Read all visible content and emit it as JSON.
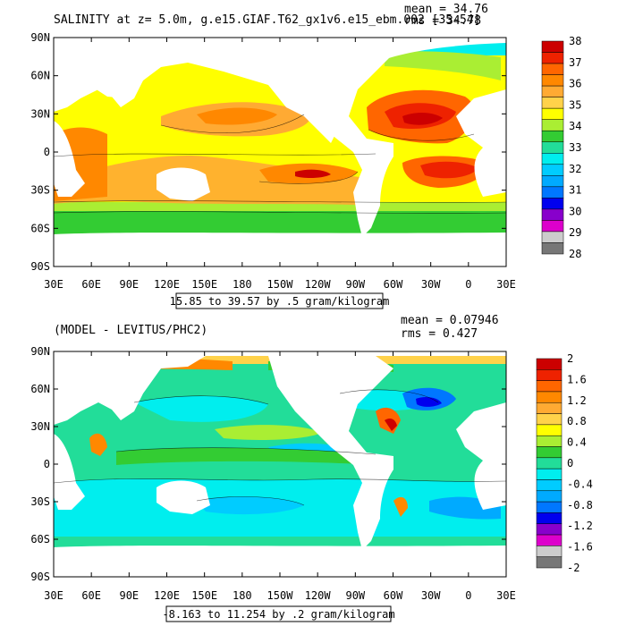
{
  "panels": [
    {
      "title": "SALINITY at z=   5.0m, g.e15.GIAF.T62_gx1v6.e15_ebm.002 [35-54]",
      "mean_label": "mean = 34.76",
      "rms_label": "rms = 34.78",
      "range_label": "15.85 to 39.57 by .5 gram/kilogram",
      "colorbar_labels": [
        "38",
        "37",
        "36",
        "35",
        "34",
        "33",
        "32",
        "31",
        "30",
        "29",
        "28"
      ],
      "colorbar_colors": [
        "#cc0000",
        "#ee2200",
        "#ff6600",
        "#ff8800",
        "#ffaa33",
        "#ffd24a",
        "#ffff00",
        "#aaee33",
        "#33cc33",
        "#22dd99",
        "#00eeee",
        "#00ccff",
        "#00aaff",
        "#0077ff",
        "#0000ee",
        "#8800cc",
        "#dd00cc",
        "#cccccc",
        "#777777"
      ]
    },
    {
      "title": "(MODEL - LEVITUS/PHC2)",
      "mean_label": "mean = 0.07946",
      "rms_label": "rms = 0.427",
      "range_label": "-8.163 to 11.254 by .2 gram/kilogram",
      "colorbar_labels": [
        "2",
        "1.6",
        "1.2",
        "0.8",
        "0.4",
        "0",
        "-0.4",
        "-0.8",
        "-1.2",
        "-1.6",
        "-2"
      ],
      "colorbar_colors": [
        "#cc0000",
        "#ee2200",
        "#ff6600",
        "#ff8800",
        "#ffaa33",
        "#ffd24a",
        "#ffff00",
        "#aaee33",
        "#33cc33",
        "#22dd99",
        "#00eeee",
        "#00ccff",
        "#00aaff",
        "#0077ff",
        "#0000ee",
        "#8800cc",
        "#dd00cc",
        "#cccccc",
        "#777777"
      ]
    }
  ],
  "lat_labels": [
    "90N",
    "60N",
    "30N",
    "0",
    "30S",
    "60S",
    "90S"
  ],
  "lon_labels": [
    "30E",
    "60E",
    "90E",
    "120E",
    "150E",
    "180",
    "150W",
    "120W",
    "90W",
    "60W",
    "30W",
    "0",
    "30E"
  ]
}
